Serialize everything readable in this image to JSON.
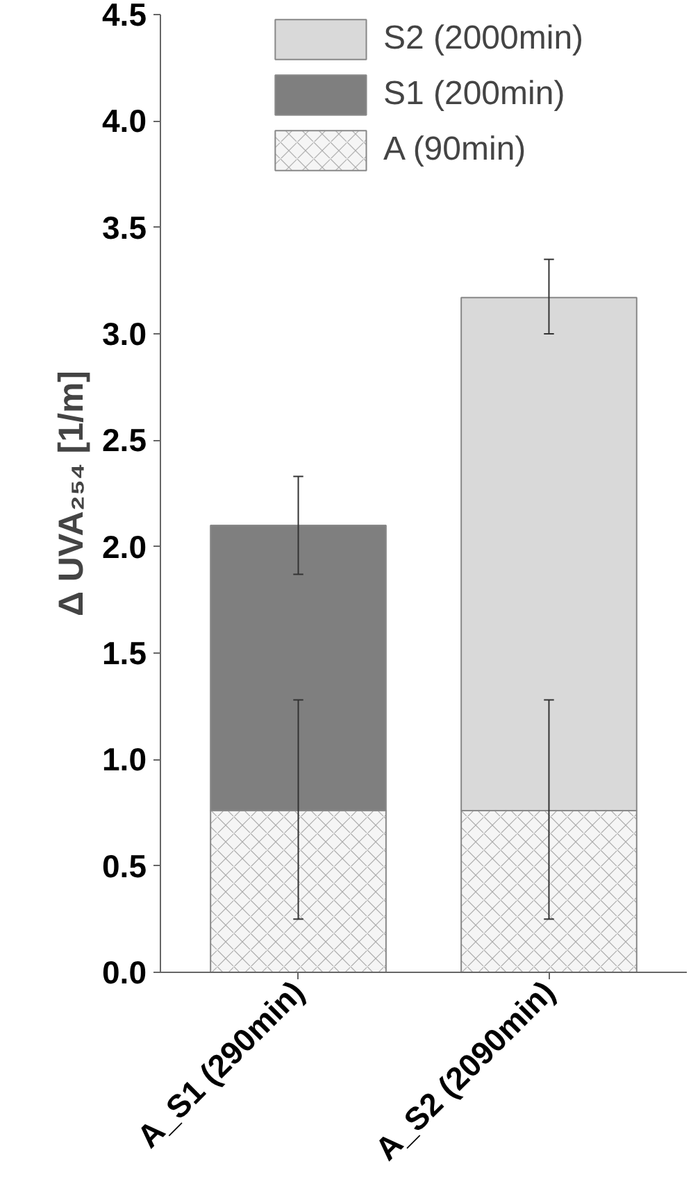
{
  "chart_data": {
    "type": "bar",
    "stacked": true,
    "ylabel": "Δ UVA₂₅₄ [1/m]",
    "categories": [
      "A_S1 (290min)",
      "A_S2 (2090min)"
    ],
    "series": [
      {
        "name": "A (90min)",
        "color": "#f5f5f5",
        "values": [
          0.76,
          0.76
        ],
        "errors": [
          [
            0.25,
            1.28
          ],
          [
            0.25,
            1.28
          ]
        ]
      },
      {
        "name": "S1 (200min)",
        "color": "#7f7f7f",
        "values": [
          1.34,
          null
        ],
        "errors": [
          [
            1.87,
            2.33
          ],
          null
        ]
      },
      {
        "name": "S2 (2000min)",
        "color": "#d9d9d9",
        "values": [
          null,
          2.41
        ],
        "errors": [
          null,
          [
            3.0,
            3.35
          ]
        ]
      }
    ],
    "ylim": [
      0,
      4.5
    ],
    "yticks": [
      {
        "value": 0,
        "label": "0.0"
      },
      0.5,
      {
        "value": 1,
        "label": "1.0"
      },
      1.5,
      {
        "value": 2,
        "label": "2.0"
      },
      2.5,
      {
        "value": 3,
        "label": "3.0"
      },
      3.5,
      {
        "value": 4,
        "label": "4.0"
      },
      4.5
    ],
    "grid": false,
    "legend": "top"
  }
}
